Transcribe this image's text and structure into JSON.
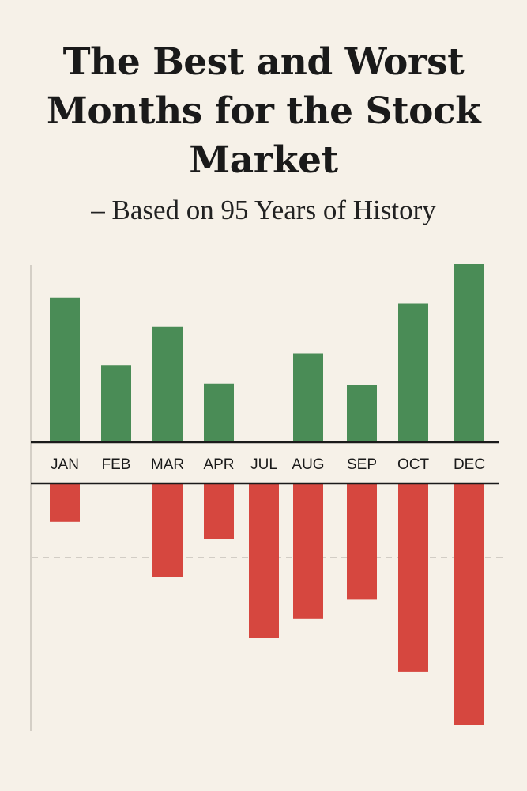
{
  "title": "The Best and Worst Months for the Stock Market",
  "subtitle": "– Based on 95 Years of History",
  "colors": {
    "positive": "#4a8c56",
    "negative": "#d6473f",
    "axis": "#1a1a1a",
    "background": "#f6f1e8"
  },
  "chart_data": {
    "type": "bar",
    "title": "The Best and Worst Months for the Stock Market",
    "subtitle": "– Based on 95 Years of History",
    "categories": [
      "JAN",
      "FEB",
      "MAR",
      "APR",
      "JUL",
      "AUG",
      "SEP",
      "OCT",
      "DEC"
    ],
    "series": [
      {
        "values": [
          0.81,
          0.43,
          0.65,
          0.33,
          0,
          0.5,
          0.32,
          0.78,
          1.0
        ]
      },
      {
        "values": [
          0.16,
          0,
          0.39,
          0.23,
          0.64,
          0.56,
          0.48,
          0.78,
          1.0
        ]
      }
    ],
    "reference_line": "dashed horizontal line in the lower half",
    "axis_ticks": false,
    "grid": false,
    "legend": "none"
  }
}
